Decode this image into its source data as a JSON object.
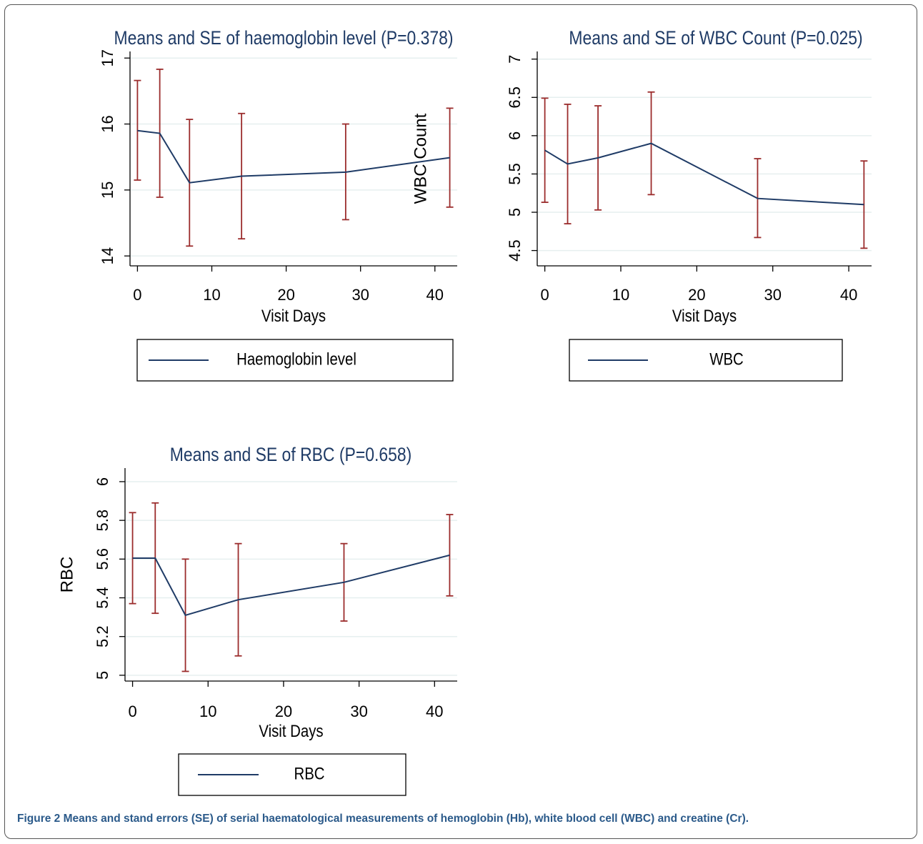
{
  "caption": {
    "label": "Figure 2",
    "text": " Means and stand errors (SE) of serial haematological measurements of hemoglobin (Hb), white blood cell (WBC) and creatine (Cr)."
  },
  "colors": {
    "line": "#1f3b66",
    "error_bar": "#9b2c2c",
    "grid": "#e6efef",
    "title": "#1f3b66"
  },
  "chart_data": [
    {
      "type": "line",
      "title": "Means and SE of haemoglobin level (P=0.378)",
      "xlabel": "Visit Days",
      "ylabel": "",
      "stray_label": "WBC Count",
      "xlim": [
        -1,
        43
      ],
      "ylim": [
        13.85,
        17.1
      ],
      "xticks": [
        0,
        10,
        20,
        30,
        40
      ],
      "yticks": [
        14,
        15,
        16,
        17
      ],
      "grid": true,
      "legend": "bottom",
      "series": [
        {
          "name": "Haemoglobin level",
          "x": [
            0,
            3,
            7,
            14,
            28,
            42
          ],
          "y": [
            15.9,
            15.86,
            15.11,
            15.21,
            15.27,
            15.49
          ],
          "se_low": [
            15.15,
            14.89,
            14.15,
            14.26,
            14.55,
            14.74
          ],
          "se_high": [
            16.66,
            16.83,
            16.07,
            16.16,
            16.0,
            16.24
          ]
        }
      ]
    },
    {
      "type": "line",
      "title": "Means and SE of WBC Count (P=0.025)",
      "xlabel": "Visit Days",
      "ylabel": "",
      "xlim": [
        -1,
        43
      ],
      "ylim": [
        4.3,
        7.1
      ],
      "xticks": [
        0,
        10,
        20,
        30,
        40
      ],
      "yticks": [
        4.5,
        5,
        5.5,
        6,
        6.5,
        7
      ],
      "grid": true,
      "legend": "bottom",
      "series": [
        {
          "name": "WBC",
          "x": [
            0,
            3,
            7,
            14,
            28,
            42
          ],
          "y": [
            5.81,
            5.63,
            5.71,
            5.9,
            5.18,
            5.1
          ],
          "se_low": [
            5.13,
            4.85,
            5.03,
            5.23,
            4.67,
            4.53
          ],
          "se_high": [
            6.49,
            6.41,
            6.39,
            6.57,
            5.7,
            5.67
          ]
        }
      ]
    },
    {
      "type": "line",
      "title": "Means and SE of RBC (P=0.658)",
      "xlabel": "Visit Days",
      "ylabel": "RBC",
      "xlim": [
        -1,
        43
      ],
      "ylim": [
        4.97,
        6.07
      ],
      "xticks": [
        0,
        10,
        20,
        30,
        40
      ],
      "yticks": [
        5,
        5.2,
        5.4,
        5.6,
        5.8,
        6
      ],
      "grid": true,
      "legend": "bottom",
      "series": [
        {
          "name": "RBC",
          "x": [
            0,
            3,
            7,
            14,
            28,
            42
          ],
          "y": [
            5.605,
            5.605,
            5.31,
            5.39,
            5.48,
            5.62
          ],
          "se_low": [
            5.37,
            5.32,
            5.02,
            5.1,
            5.28,
            5.41
          ],
          "se_high": [
            5.84,
            5.89,
            5.6,
            5.68,
            5.68,
            5.83
          ]
        }
      ]
    }
  ]
}
